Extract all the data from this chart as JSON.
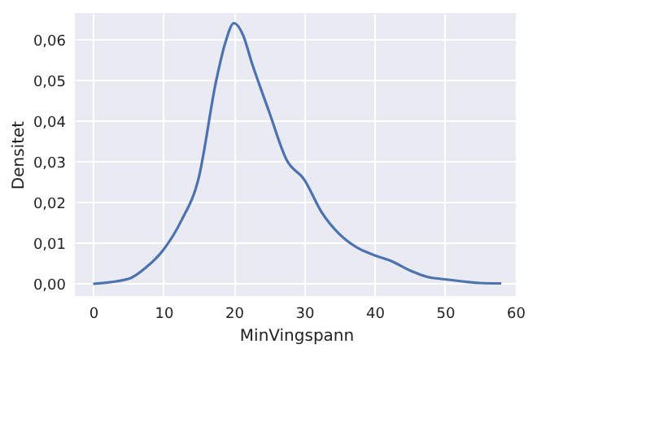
{
  "chart_data": {
    "type": "line",
    "xlabel": "MinVingspann",
    "ylabel": "Densitet",
    "x": [
      0,
      5,
      7.5,
      10,
      12.5,
      15,
      17.5,
      18.75,
      20,
      21.3,
      22.6,
      25,
      27.5,
      30,
      32.5,
      35,
      37.5,
      40,
      42.5,
      45,
      47.5,
      50,
      52.5,
      55,
      58
    ],
    "series": [
      {
        "color": "#4c72b0",
        "values": [
          0.0,
          0.0012,
          0.004,
          0.0084,
          0.0154,
          0.026,
          0.05,
          0.059,
          0.064,
          0.0611,
          0.054,
          0.0423,
          0.0304,
          0.0256,
          0.0175,
          0.0122,
          0.0089,
          0.007,
          0.0055,
          0.0033,
          0.0017,
          0.0011,
          0.0006,
          0.0002,
          0.0001
        ]
      }
    ],
    "xlim": [
      -2.6,
      60.3
    ],
    "ylim": [
      -0.003,
      0.0665
    ],
    "xticks": [
      0,
      10,
      20,
      30,
      40,
      50,
      60
    ],
    "yticks": [
      {
        "value": 0,
        "label": "0,00"
      },
      {
        "value": 0.01,
        "label": "0,01"
      },
      {
        "value": 0.02,
        "label": "0,02"
      },
      {
        "value": 0.03,
        "label": "0,03"
      },
      {
        "value": 0.04,
        "label": "0,04"
      },
      {
        "value": 0.05,
        "label": "0,05"
      },
      {
        "value": 0.06,
        "label": "0,06"
      }
    ],
    "grid": true,
    "marker": "none",
    "line_style": "solid"
  }
}
